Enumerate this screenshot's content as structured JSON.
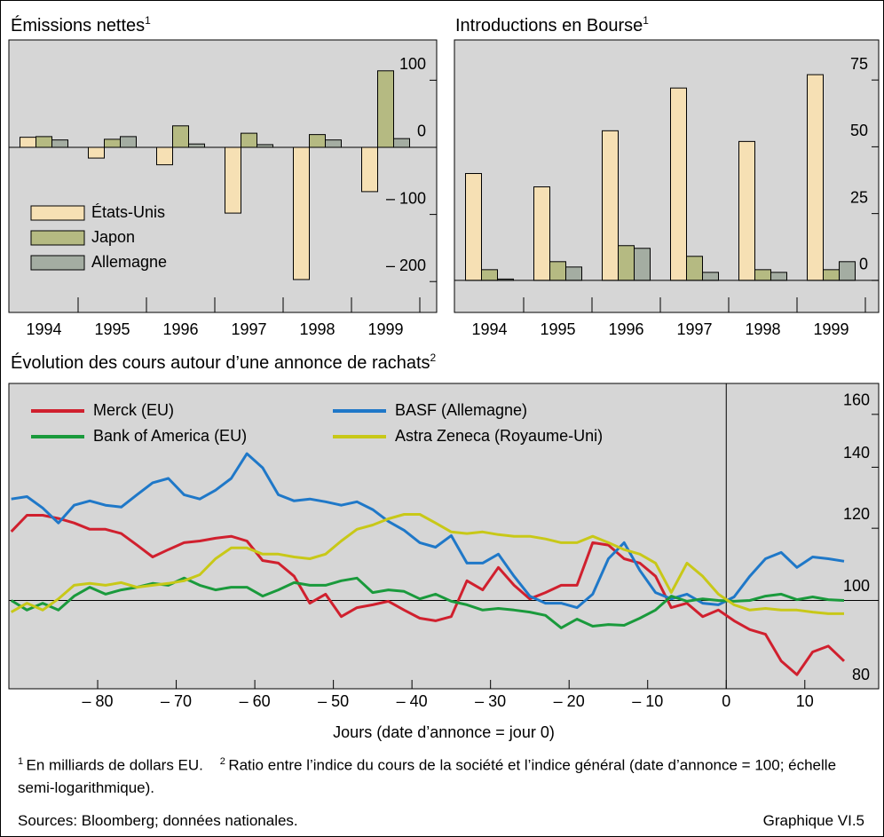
{
  "chart_data": [
    {
      "type": "bar",
      "title": "Émissions nettes",
      "title_note": "1",
      "categories": [
        "1994",
        "1995",
        "1996",
        "1997",
        "1998",
        "1999"
      ],
      "series": [
        {
          "name": "États-Unis",
          "color": "#f6e0b4",
          "values": [
            15,
            -16,
            -26,
            -98,
            -197,
            -66
          ]
        },
        {
          "name": "Japon",
          "color": "#b5ba82",
          "values": [
            16,
            12,
            32,
            21,
            19,
            114
          ]
        },
        {
          "name": "Allemagne",
          "color": "#a4ada2",
          "values": [
            11,
            16,
            5,
            4,
            11,
            13
          ]
        }
      ],
      "ylim": [
        -246,
        160
      ],
      "yticks": [
        {
          "value": -200,
          "label": "– 200"
        },
        {
          "value": -100,
          "label": "– 100"
        },
        0,
        100
      ],
      "legend": "lower left"
    },
    {
      "type": "bar",
      "title": "Introductions en Bourse",
      "title_note": "1",
      "categories": [
        "1994",
        "1995",
        "1996",
        "1997",
        "1998",
        "1999"
      ],
      "series": [
        {
          "color": "#f6e0b4",
          "values": [
            40,
            35,
            56,
            72,
            52,
            77
          ]
        },
        {
          "color": "#b5ba82",
          "values": [
            4,
            7,
            13,
            9,
            4,
            4
          ]
        },
        {
          "color": "#a4ada2",
          "values": [
            0.5,
            5,
            12,
            3,
            3,
            7
          ]
        }
      ],
      "ylim": [
        -12,
        90
      ],
      "yticks": [
        0,
        25,
        50,
        75
      ]
    },
    {
      "type": "line",
      "title": "Évolution des cours autour d’une annonce de rachats",
      "title_note": "2",
      "xlabel": "Jours (date d’annonce = jour 0)",
      "x": [
        -91,
        -89,
        -87,
        -85,
        -83,
        -81,
        -79,
        -77,
        -75,
        -73,
        -71,
        -69,
        -67,
        -65,
        -63,
        -61,
        -59,
        -57,
        -55,
        -53,
        -51,
        -49,
        -47,
        -45,
        -43,
        -41,
        -39,
        -37,
        -35,
        -33,
        -31,
        -29,
        -27,
        -25,
        -23,
        -21,
        -19,
        -17,
        -15,
        -13,
        -11,
        -9,
        -7,
        -5,
        -3,
        -1,
        1,
        3,
        5,
        7,
        9,
        11,
        13,
        15
      ],
      "series": [
        {
          "name": "Merck (EU)",
          "color": "#d0202e",
          "values": [
            119,
            124,
            124,
            123,
            121.6,
            119.7,
            119.7,
            118.4,
            115,
            111.6,
            113.7,
            115.7,
            116.2,
            117,
            117.6,
            116.2,
            110.6,
            109.9,
            106.3,
            99.3,
            101.6,
            96,
            98.2,
            98.9,
            99.8,
            97.6,
            95.6,
            95,
            96,
            105.1,
            102.7,
            108.7,
            103.9,
            100.4,
            102,
            103.9,
            103.9,
            115.7,
            115,
            111.1,
            109.9,
            106.3,
            98.2,
            99.3,
            96,
            97.6,
            95,
            92.9,
            91.8,
            85.8,
            82.9,
            87.8,
            89.1,
            85.8
          ]
        },
        {
          "name": "BASF (Allemagne)",
          "color": "#1f78c8",
          "values": [
            129.2,
            130,
            126.3,
            121.6,
            127.2,
            128.6,
            127.2,
            126.6,
            130.6,
            134.6,
            136.1,
            130.6,
            129.2,
            132.1,
            136.1,
            144.9,
            139.8,
            130.6,
            128.6,
            129.2,
            128.3,
            127.2,
            128.3,
            125.8,
            122.1,
            119.4,
            115.7,
            114.4,
            117.8,
            109.9,
            109.9,
            112.4,
            106.3,
            101.1,
            99.3,
            99.3,
            98.2,
            101.6,
            111.1,
            115.7,
            107.9,
            102,
            100.4,
            101.6,
            99.3,
            98.9,
            100.9,
            106.3,
            111.1,
            112.9,
            108.7,
            111.6,
            111.1,
            110.4
          ]
        },
        {
          "name": "Bank of America (EU)",
          "color": "#1a9a3c",
          "values": [
            100,
            97.6,
            99.3,
            97.6,
            101.1,
            103.4,
            101.6,
            102.7,
            103.4,
            104.4,
            103.9,
            105.8,
            103.9,
            102.7,
            103.4,
            103.4,
            101.1,
            102.7,
            104.6,
            103.9,
            103.9,
            105.1,
            105.8,
            102,
            102.7,
            102.3,
            100.4,
            101.6,
            99.8,
            98.9,
            97.6,
            98,
            97.6,
            97.1,
            96.3,
            93.3,
            95.4,
            93.7,
            94.1,
            93.9,
            95.6,
            97.6,
            101.1,
            99.8,
            100.4,
            100,
            99.8,
            100,
            101.1,
            101.6,
            100.2,
            100.9,
            100.2,
            100
          ]
        },
        {
          "name": "Astra Zeneca (Royaume-Uni)",
          "color": "#c8c818",
          "values": [
            97.1,
            99.3,
            97.6,
            100.4,
            103.9,
            104.4,
            103.9,
            104.6,
            103.4,
            103.9,
            104.4,
            105.1,
            106.7,
            111.1,
            114.2,
            114.2,
            112.4,
            112.4,
            111.6,
            111.1,
            112.4,
            116.2,
            119.7,
            121,
            122.9,
            124.3,
            124.3,
            121.6,
            118.9,
            118.4,
            118.9,
            118.1,
            117.6,
            117.6,
            116.8,
            115.7,
            115.7,
            117.6,
            115.7,
            113.7,
            112.4,
            109.9,
            102,
            109.9,
            106.3,
            101.6,
            98.9,
            97.6,
            98,
            97.6,
            97.6,
            97.1,
            96.7,
            96.7
          ]
        }
      ],
      "xlim": [
        -91.3,
        19.4
      ],
      "xticks": [
        {
          "value": -80,
          "label": "– 80"
        },
        {
          "value": -70,
          "label": "– 70"
        },
        {
          "value": -60,
          "label": "– 60"
        },
        {
          "value": -50,
          "label": "– 50"
        },
        {
          "value": -40,
          "label": "– 40"
        },
        {
          "value": -30,
          "label": "– 30"
        },
        {
          "value": -20,
          "label": "– 20"
        },
        {
          "value": -10,
          "label": "– 10"
        },
        0,
        10
      ],
      "ylim": [
        80,
        173
      ],
      "yticks": [
        80,
        100,
        120,
        140,
        160
      ],
      "log_y": true,
      "hline": 100,
      "vline": 0,
      "legend": "upper left"
    }
  ],
  "notes": [
    {
      "marker": "1",
      "text": "En milliards de dollars EU."
    },
    {
      "marker": "2",
      "text": "Ratio entre l’indice du cours de la société et l’indice général (date d’annonce = 100; échelle semi-logarithmique)."
    }
  ],
  "sources": "Sources: Bloomberg; données nationales.",
  "figure_label": "Graphique VI.5"
}
